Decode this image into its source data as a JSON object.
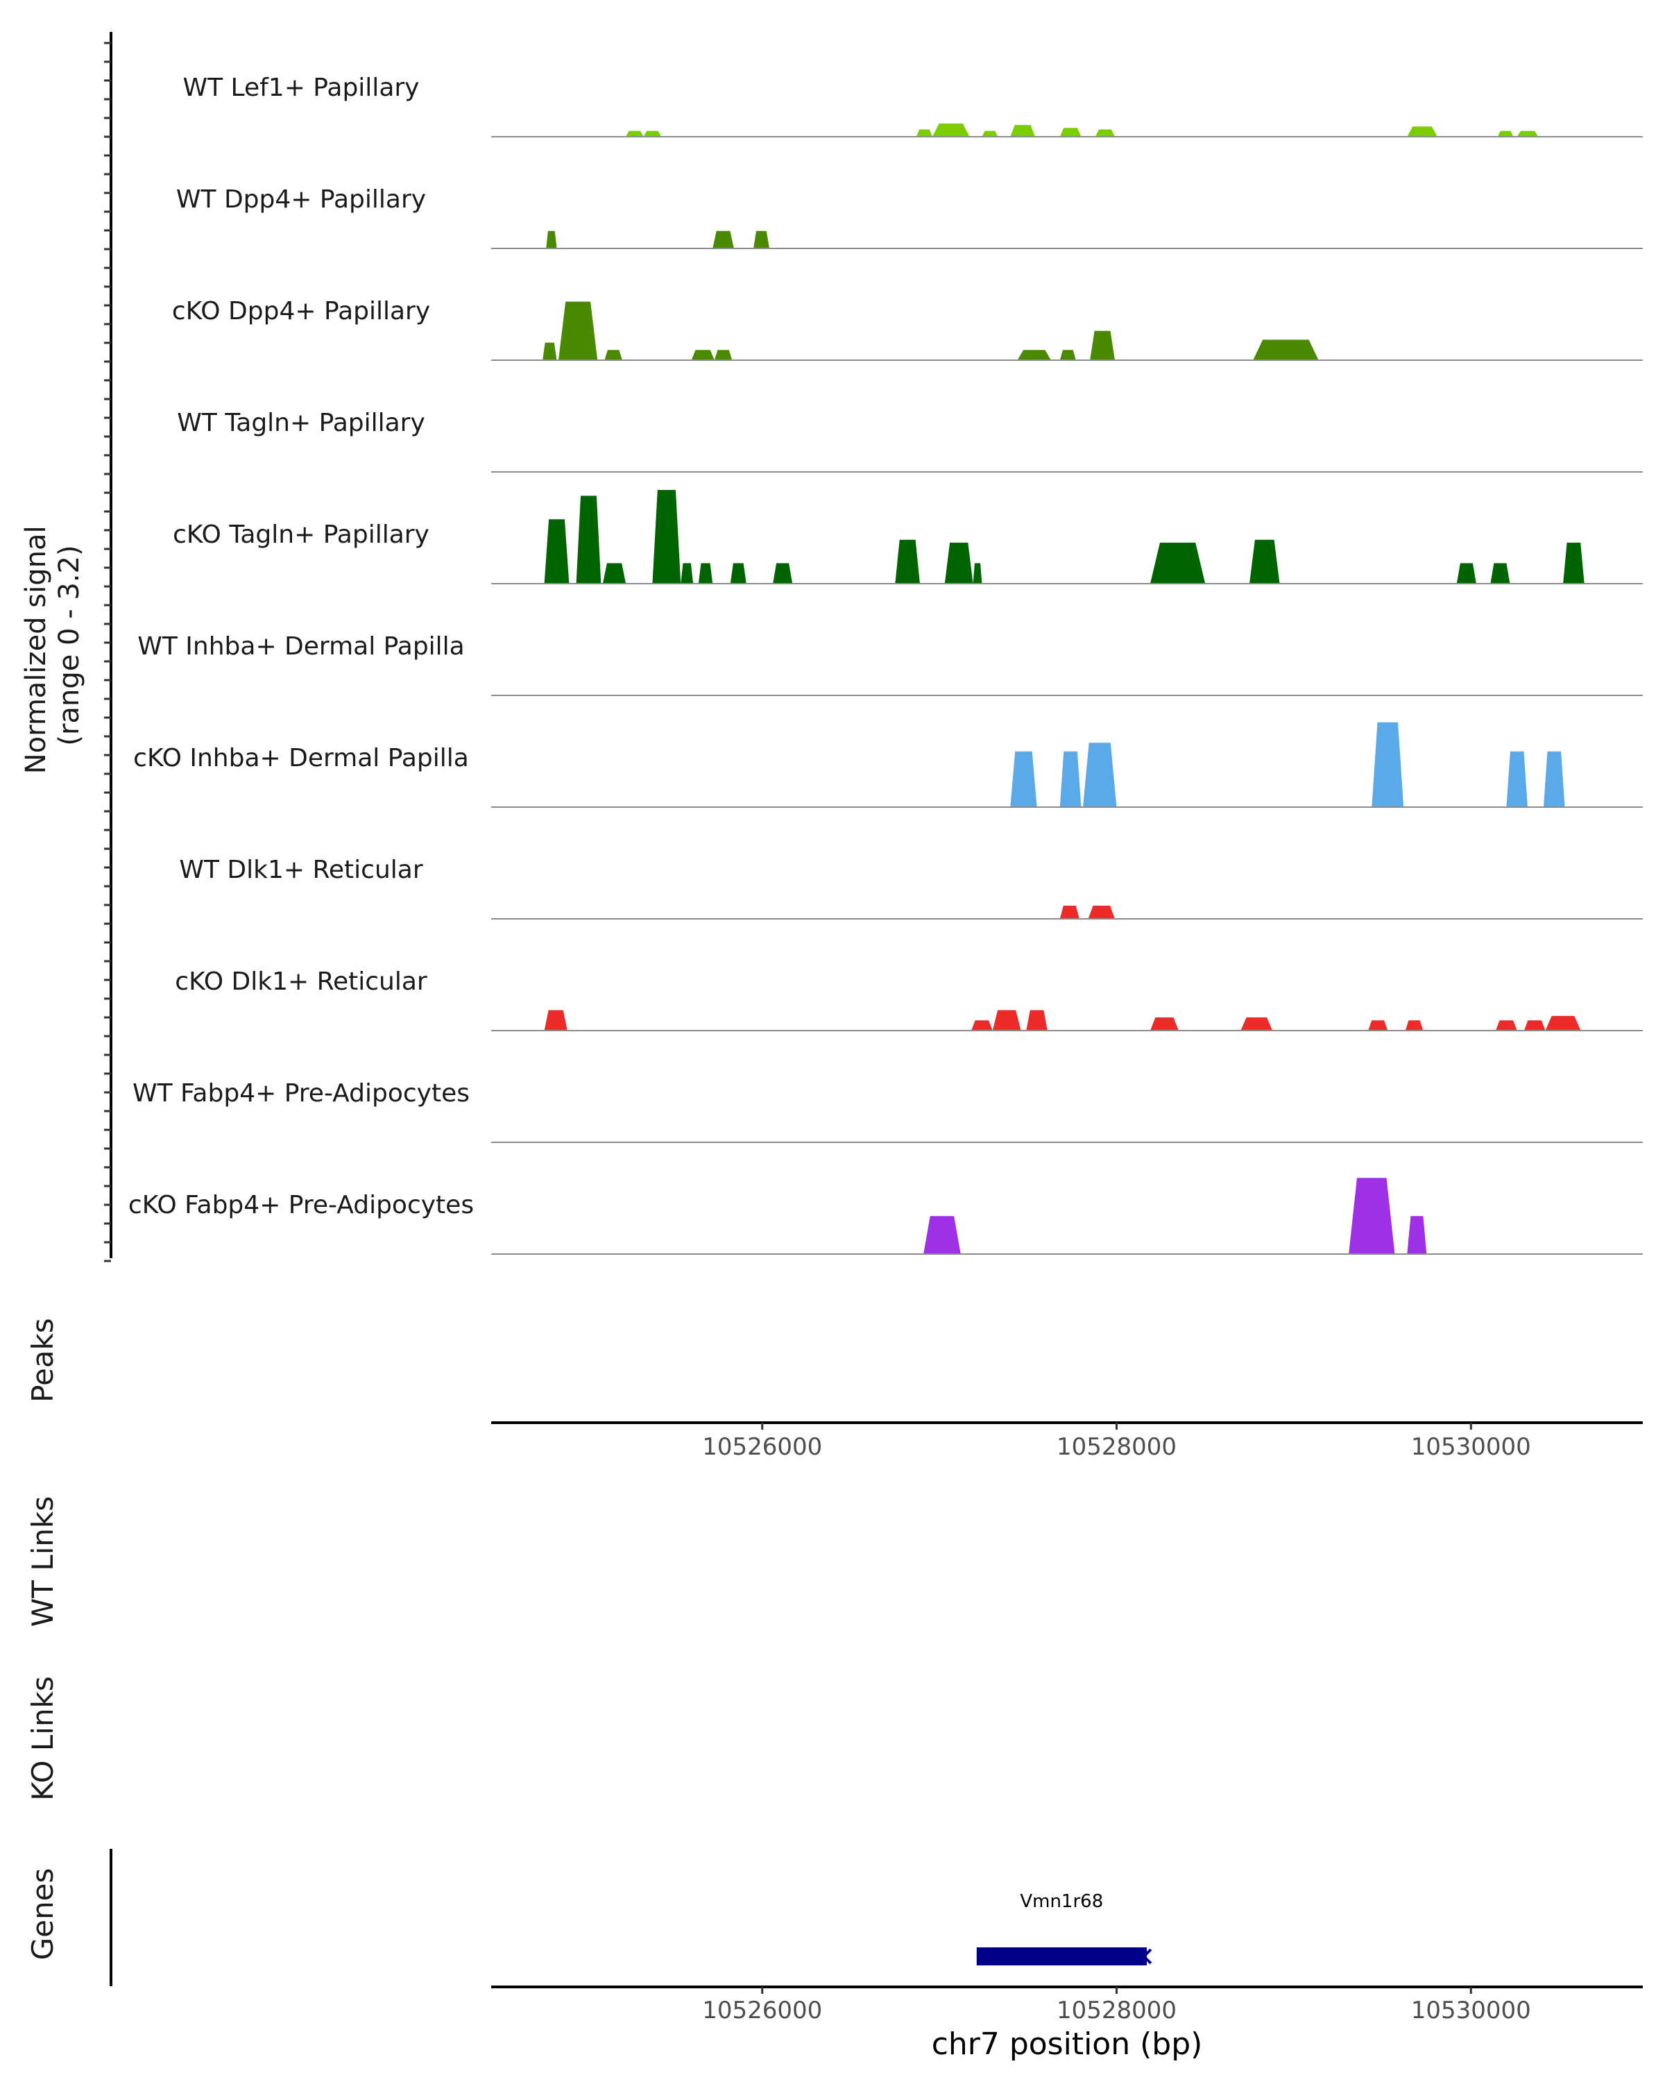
{
  "chart_data": {
    "type": "area",
    "title": "",
    "xlabel": "chr7 position (bp)",
    "ylabel": "Normalized signal\n(range 0 - 3.2)",
    "y_label_lines": [
      "Normalized signal",
      "(range 0 - 3.2)"
    ],
    "ylim": [
      0,
      3.2
    ],
    "xlim": [
      10524470,
      10530970
    ],
    "x_ticks": [
      10526000,
      10528000,
      10530000
    ],
    "x_tick_labels": [
      "10526000",
      "10528000",
      "10530000"
    ],
    "tracks": [
      {
        "name": "WT Lef1+ Papillary",
        "color": "#7ccd00",
        "peaks": [
          [
            10525230,
            10525330,
            0.2
          ],
          [
            10525330,
            10525430,
            0.2
          ],
          [
            10526870,
            10526960,
            0.25
          ],
          [
            10526960,
            10527170,
            0.45
          ],
          [
            10527240,
            10527330,
            0.2
          ],
          [
            10527400,
            10527540,
            0.4
          ],
          [
            10527680,
            10527800,
            0.3
          ],
          [
            10527880,
            10527990,
            0.25
          ],
          [
            10529640,
            10529810,
            0.35
          ],
          [
            10530150,
            10530240,
            0.2
          ],
          [
            10530260,
            10530380,
            0.2
          ]
        ]
      },
      {
        "name": "WT Dpp4+ Papillary",
        "color": "#4a8a00",
        "peaks": [
          [
            10524780,
            10524840,
            0.6
          ],
          [
            10525720,
            10525840,
            0.6
          ],
          [
            10525950,
            10526040,
            0.6
          ]
        ]
      },
      {
        "name": "cKO Dpp4+ Papillary",
        "color": "#4a8a00",
        "peaks": [
          [
            10524760,
            10524840,
            0.6
          ],
          [
            10524850,
            10525070,
            2.0
          ],
          [
            10525110,
            10525210,
            0.35
          ],
          [
            10525600,
            10525730,
            0.35
          ],
          [
            10525730,
            10525830,
            0.35
          ],
          [
            10527440,
            10527630,
            0.35
          ],
          [
            10527680,
            10527770,
            0.35
          ],
          [
            10527850,
            10527990,
            1.0
          ],
          [
            10528770,
            10529140,
            0.7
          ]
        ]
      },
      {
        "name": "WT Tagln+ Papillary",
        "color": "#006400",
        "peaks": []
      },
      {
        "name": "cKO Tagln+ Papillary",
        "color": "#006400",
        "peaks": [
          [
            10524770,
            10524910,
            2.2
          ],
          [
            10524950,
            10525090,
            3.0
          ],
          [
            10525100,
            10525230,
            0.7
          ],
          [
            10525380,
            10525540,
            3.2
          ],
          [
            10525540,
            10525610,
            0.7
          ],
          [
            10525640,
            10525720,
            0.7
          ],
          [
            10525820,
            10525910,
            0.7
          ],
          [
            10526060,
            10526170,
            0.7
          ],
          [
            10526750,
            10526890,
            1.5
          ],
          [
            10527030,
            10527190,
            1.4
          ],
          [
            10527190,
            10527240,
            0.7
          ],
          [
            10528190,
            10528500,
            1.4
          ],
          [
            10528750,
            10528920,
            1.5
          ],
          [
            10529920,
            10530030,
            0.7
          ],
          [
            10530110,
            10530220,
            0.7
          ],
          [
            10530520,
            10530640,
            1.4
          ]
        ]
      },
      {
        "name": "WT Inhba+ Dermal Papilla",
        "color": "#5aaaea",
        "peaks": []
      },
      {
        "name": "cKO Inhba+ Dermal Papilla",
        "color": "#5aaaea",
        "peaks": [
          [
            10527400,
            10527550,
            1.9
          ],
          [
            10527680,
            10527800,
            1.9
          ],
          [
            10527810,
            10528000,
            2.2
          ],
          [
            10529440,
            10529620,
            2.9
          ],
          [
            10530200,
            10530320,
            1.9
          ],
          [
            10530410,
            10530530,
            1.9
          ]
        ]
      },
      {
        "name": "WT Dlk1+ Reticular",
        "color": "#ee2b2b",
        "peaks": [
          [
            10527680,
            10527790,
            0.45
          ],
          [
            10527840,
            10527990,
            0.45
          ]
        ]
      },
      {
        "name": "cKO Dlk1+ Reticular",
        "color": "#ee2b2b",
        "peaks": [
          [
            10524770,
            10524900,
            0.7
          ],
          [
            10527180,
            10527300,
            0.35
          ],
          [
            10527300,
            10527460,
            0.7
          ],
          [
            10527490,
            10527610,
            0.7
          ],
          [
            10528190,
            10528350,
            0.45
          ],
          [
            10528700,
            10528880,
            0.45
          ],
          [
            10529420,
            10529530,
            0.35
          ],
          [
            10529630,
            10529730,
            0.35
          ],
          [
            10530140,
            10530260,
            0.35
          ],
          [
            10530300,
            10530420,
            0.35
          ],
          [
            10530420,
            10530620,
            0.5
          ]
        ]
      },
      {
        "name": "WT Fabp4+ Pre-Adipocytes",
        "color": "#a030e8",
        "peaks": []
      },
      {
        "name": "cKO Fabp4+ Pre-Adipocytes",
        "color": "#a030e8",
        "peaks": [
          [
            10526910,
            10527120,
            1.3
          ],
          [
            10529310,
            10529570,
            2.6
          ],
          [
            10529640,
            10529750,
            1.3
          ]
        ]
      }
    ],
    "panels": {
      "peaks_label": "Peaks",
      "wt_links_label": "WT Links",
      "ko_links_label": "KO Links",
      "genes_label": "Genes"
    },
    "gene": {
      "name": "Vmn1r68",
      "start": 10527210,
      "end": 10528170,
      "strand": "-",
      "color": "#00008b"
    }
  }
}
